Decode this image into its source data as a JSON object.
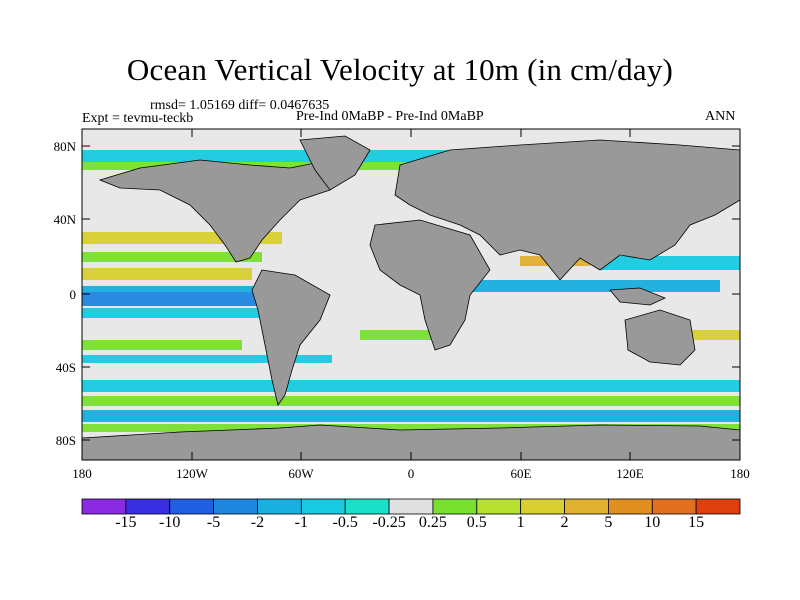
{
  "title": "Ocean Vertical Velocity at 10m (in cm/day)",
  "stats": "rmsd= 1.05169 diff= 0.0467635",
  "left_label": "Expt = tevmu-teckb",
  "center_label": "Pre-Ind 0MaBP - Pre-Ind 0MaBP",
  "right_label": "ANN",
  "lat_ticks": [
    "80N",
    "40N",
    "0",
    "40S",
    "80S"
  ],
  "lon_ticks": [
    "180",
    "120W",
    "60W",
    "0",
    "60E",
    "120E",
    "180"
  ],
  "colorbar": {
    "colors": [
      "#8a2be2",
      "#3a2fe0",
      "#1f5fe0",
      "#1f86e0",
      "#19b0e0",
      "#19cbe0",
      "#19e0c8",
      "#e0e0e0",
      "#7ae030",
      "#b8e030",
      "#d8d030",
      "#e0b030",
      "#e09020",
      "#e07020",
      "#e04010"
    ],
    "labels": [
      "-15",
      "-10",
      "-5",
      "-2",
      "-1",
      "-0.5",
      "-0.25",
      "0.25",
      "0.5",
      "1",
      "2",
      "5",
      "10",
      "15"
    ]
  },
  "colors": {
    "land": "#999999",
    "background": "#e8e8e8"
  }
}
